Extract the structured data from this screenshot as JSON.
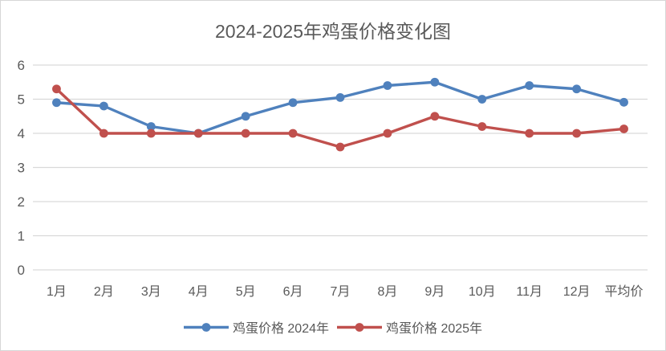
{
  "chart_data": {
    "type": "line",
    "title": "2024-2025年鸡蛋价格变化图",
    "categories": [
      "1月",
      "2月",
      "3月",
      "4月",
      "5月",
      "6月",
      "7月",
      "8月",
      "9月",
      "10月",
      "11月",
      "12月",
      "平均价"
    ],
    "series": [
      {
        "name": "鸡蛋价格 2024年",
        "color": "#4F81BD",
        "values": [
          4.9,
          4.8,
          4.2,
          4.0,
          4.5,
          4.9,
          5.05,
          5.4,
          5.5,
          5.0,
          5.4,
          5.3,
          4.91
        ]
      },
      {
        "name": "鸡蛋价格 2025年",
        "color": "#C0504D",
        "values": [
          5.3,
          4.0,
          4.0,
          4.0,
          4.0,
          4.0,
          3.6,
          4.0,
          4.5,
          4.2,
          4.0,
          4.0,
          4.13
        ]
      }
    ],
    "xlabel": "",
    "ylabel": "",
    "ylim": [
      0,
      6
    ],
    "yticks": [
      0,
      1,
      2,
      3,
      4,
      5,
      6
    ],
    "grid": "horizontal",
    "legend_position": "bottom",
    "grid_color": "#D9D9D9",
    "text_color": "#595959"
  }
}
